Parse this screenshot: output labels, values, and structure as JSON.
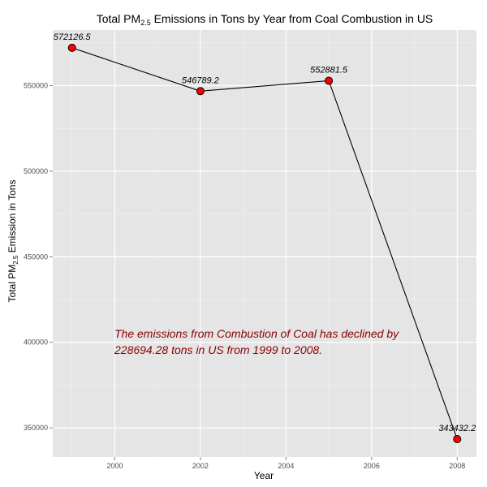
{
  "chart_data": {
    "type": "line",
    "title": {
      "prefix": "Total PM",
      "subscript": "2.5",
      "suffix": " Emissions in Tons by Year from Coal Combustion in US"
    },
    "xlabel": "Year",
    "ylabel": {
      "prefix": "Total PM",
      "subscript": "2.5",
      "suffix": " Emission in Tons"
    },
    "x": [
      1999,
      2002,
      2005,
      2008
    ],
    "y": [
      572126.5,
      546789.2,
      552881.5,
      343432.2
    ],
    "data_labels": [
      "572126.5",
      "546789.2",
      "552881.5",
      "343432.2"
    ],
    "xlim": [
      1998.55,
      2008.45
    ],
    "ylim": [
      333000,
      582500
    ],
    "x_ticks": [
      2000,
      2002,
      2004,
      2006,
      2008
    ],
    "x_tick_labels": [
      "2000",
      "2002",
      "2004",
      "2006",
      "2008"
    ],
    "y_ticks": [
      350000,
      400000,
      450000,
      500000,
      550000
    ],
    "y_tick_labels": [
      "350000",
      "400000",
      "450000",
      "500000",
      "550000"
    ],
    "grid": true,
    "annotation": {
      "lines": [
        "The emissions from Combustion of Coal has declined by",
        "228694.28 tons in US from 1999 to 2008."
      ],
      "color": "#8b0000"
    },
    "colors": {
      "panel_background": "#e5e5e5",
      "gridline_major": "#ffffff",
      "gridline_minor": "#f2f2f2",
      "line": "#000000",
      "point_fill": "#ff0000",
      "point_stroke": "#000000",
      "tick_text": "#4d4d4d"
    }
  }
}
